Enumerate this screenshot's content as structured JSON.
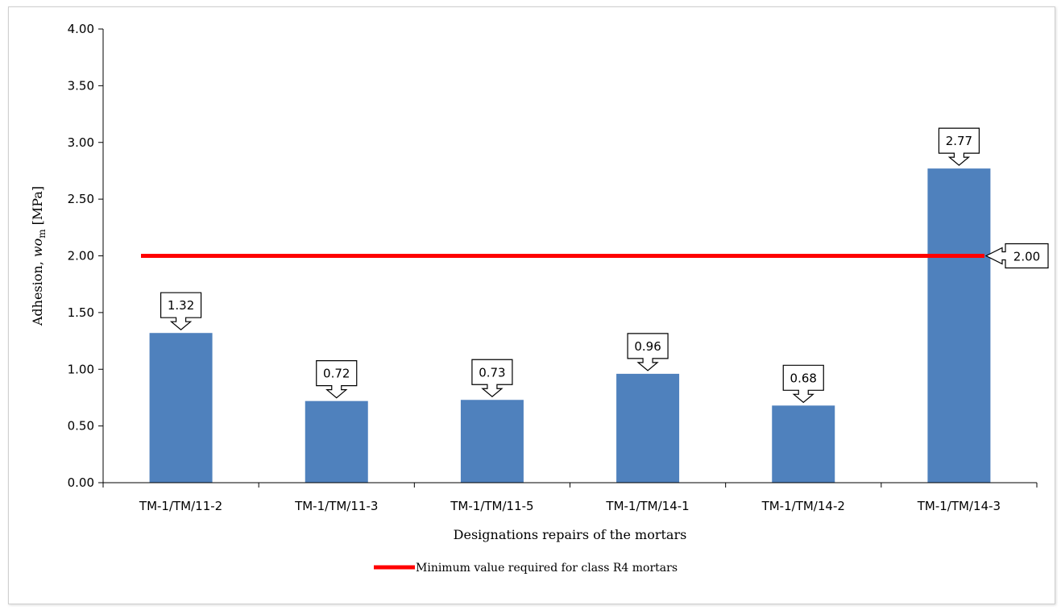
{
  "chart_data": {
    "type": "bar",
    "categories": [
      "TM-1/TM/11-2",
      "TM-1/TM/11-3",
      "TM-1/TM/11-5",
      "TM-1/TM/14-1",
      "TM-1/TM/14-2",
      "TM-1/TM/14-3"
    ],
    "values": [
      1.32,
      0.72,
      0.73,
      0.96,
      0.68,
      2.77
    ],
    "value_labels": [
      "1.32",
      "0.72",
      "0.73",
      "0.96",
      "0.68",
      "2.77"
    ],
    "bar_color": "#4f81bd",
    "ylim": [
      0,
      4.0
    ],
    "y_ticks": [
      "0.00",
      "0.50",
      "1.00",
      "1.50",
      "2.00",
      "2.50",
      "3.00",
      "3.50",
      "4.00"
    ],
    "xlabel": "Designations repairs of the mortars",
    "ylabel": {
      "prefix": "Adhesion, ",
      "symbol": "wo",
      "subscript": "m",
      "unit": " [MPa]"
    },
    "threshold": {
      "value": 2.0,
      "label": "2.00",
      "color": "#ff0000",
      "legend": "Minimum value required for class R4 mortars"
    },
    "grid": false,
    "legend_position": "bottom"
  }
}
